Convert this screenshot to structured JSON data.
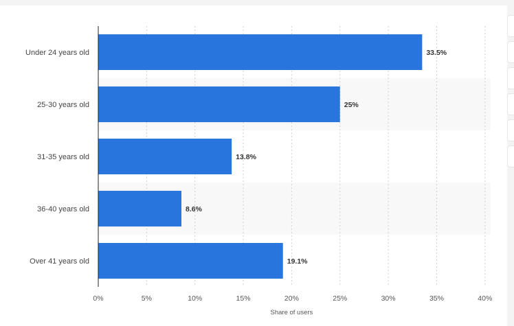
{
  "chart_data": {
    "type": "bar",
    "orientation": "horizontal",
    "categories": [
      "Under 24 years old",
      "25-30 years old",
      "31-35 years old",
      "36-40 years old",
      "Over 41 years old"
    ],
    "values": [
      33.5,
      25,
      13.8,
      8.6,
      19.1
    ],
    "value_labels": [
      "33.5%",
      "25%",
      "13.8%",
      "8.6%",
      "19.1%"
    ],
    "xlabel": "Share of users",
    "ylabel": "",
    "xlim": [
      0,
      40
    ],
    "ticks": [
      0,
      5,
      10,
      15,
      20,
      25,
      30,
      35,
      40
    ],
    "tick_labels": [
      "0%",
      "5%",
      "10%",
      "15%",
      "20%",
      "25%",
      "30%",
      "35%",
      "40%"
    ],
    "grid": true,
    "colors": {
      "bar": "#2876dd",
      "grid": "#cfcfcf",
      "band": "#f8f8f8"
    }
  }
}
